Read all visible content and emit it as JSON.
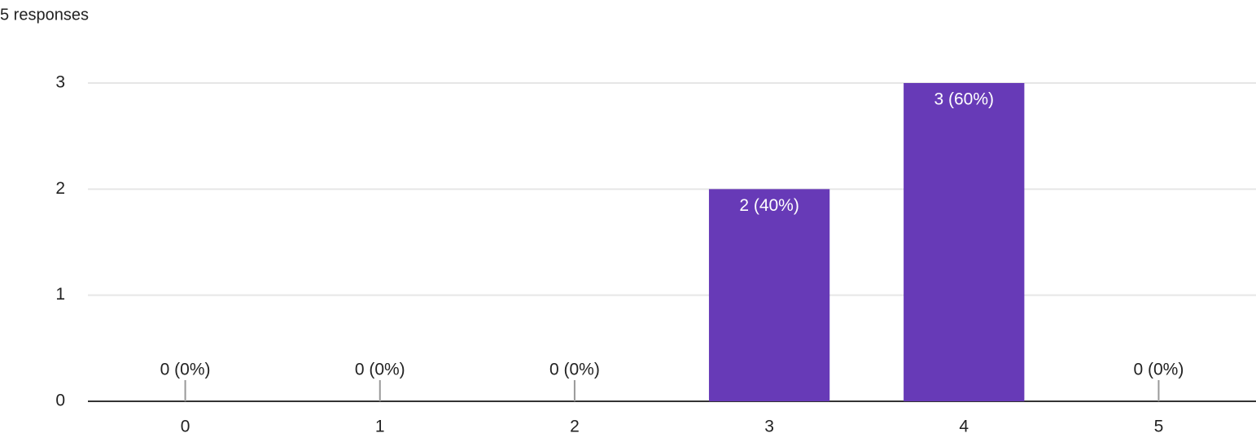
{
  "chart_data": {
    "type": "bar",
    "subtitle": "5 responses",
    "categories": [
      "0",
      "1",
      "2",
      "3",
      "4",
      "5"
    ],
    "values": [
      0,
      0,
      0,
      2,
      3,
      0
    ],
    "value_labels": [
      "0 (0%)",
      "0 (0%)",
      "0 (0%)",
      "2 (40%)",
      "3 (60%)",
      "0 (0%)"
    ],
    "color": "#673ab7",
    "ylim": [
      0,
      3
    ],
    "yticks": [
      0,
      1,
      2,
      3
    ],
    "grid": true
  }
}
